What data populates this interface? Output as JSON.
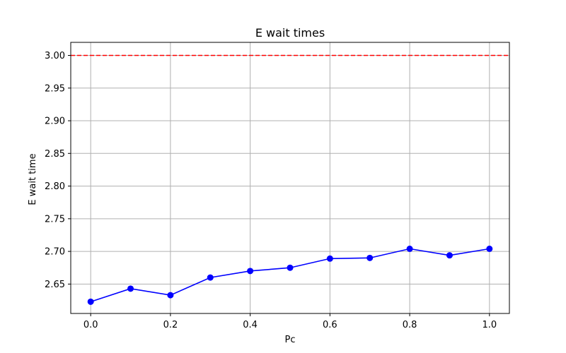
{
  "chart_data": {
    "type": "line",
    "title": "E wait times",
    "xlabel": "Pc",
    "ylabel": "E wait time",
    "xlim": [
      -0.05,
      1.05
    ],
    "ylim": [
      2.605,
      3.02
    ],
    "grid": true,
    "x_ticks": [
      0.0,
      0.2,
      0.4,
      0.6,
      0.8,
      1.0
    ],
    "x_tick_labels": [
      "0.0",
      "0.2",
      "0.4",
      "0.6",
      "0.8",
      "1.0"
    ],
    "y_ticks": [
      2.65,
      2.7,
      2.75,
      2.8,
      2.85,
      2.9,
      2.95,
      3.0
    ],
    "y_tick_labels": [
      "2.65",
      "2.70",
      "2.75",
      "2.80",
      "2.85",
      "2.90",
      "2.95",
      "3.00"
    ],
    "series": [
      {
        "color": "#0000ff",
        "x": [
          0.0,
          0.1,
          0.2,
          0.3,
          0.4,
          0.5,
          0.6,
          0.7,
          0.8,
          0.9,
          1.0
        ],
        "y": [
          2.623,
          2.643,
          2.633,
          2.66,
          2.67,
          2.675,
          2.689,
          2.69,
          2.704,
          2.694,
          2.704
        ]
      }
    ],
    "reference_line": {
      "y": 3.0,
      "color": "#ff0000",
      "style": "dashed"
    }
  }
}
